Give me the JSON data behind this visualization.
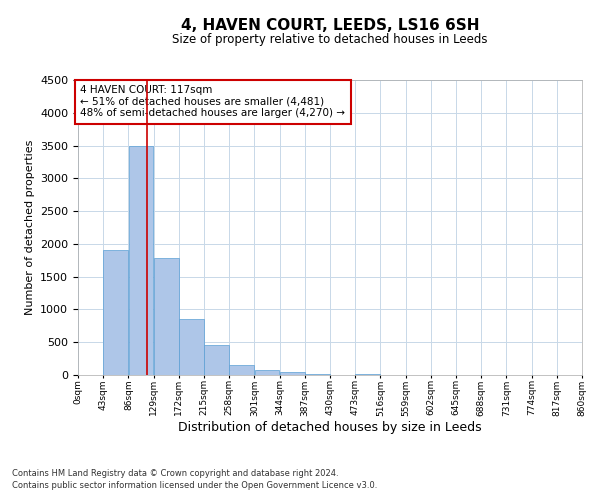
{
  "title": "4, HAVEN COURT, LEEDS, LS16 6SH",
  "subtitle": "Size of property relative to detached houses in Leeds",
  "xlabel": "Distribution of detached houses by size in Leeds",
  "ylabel": "Number of detached properties",
  "annotation_line1": "4 HAVEN COURT: 117sqm",
  "annotation_line2": "← 51% of detached houses are smaller (4,481)",
  "annotation_line3": "48% of semi-detached houses are larger (4,270) →",
  "footnote1": "Contains HM Land Registry data © Crown copyright and database right 2024.",
  "footnote2": "Contains public sector information licensed under the Open Government Licence v3.0.",
  "property_size": 117,
  "bar_edges": [
    0,
    43,
    86,
    129,
    172,
    215,
    258,
    301,
    344,
    387,
    430,
    473,
    516,
    559,
    602,
    645,
    688,
    731,
    774,
    817,
    860
  ],
  "bar_heights": [
    5,
    1900,
    3500,
    1780,
    850,
    460,
    160,
    80,
    40,
    15,
    0,
    10,
    0,
    0,
    5,
    0,
    0,
    0,
    0,
    0
  ],
  "bar_color": "#aec6e8",
  "bar_edge_color": "#5a9fd4",
  "red_line_color": "#cc0000",
  "annotation_box_color": "#cc0000",
  "background_color": "#ffffff",
  "grid_color": "#c8d8e8",
  "ylim": [
    0,
    4500
  ],
  "yticks": [
    0,
    500,
    1000,
    1500,
    2000,
    2500,
    3000,
    3500,
    4000,
    4500
  ]
}
